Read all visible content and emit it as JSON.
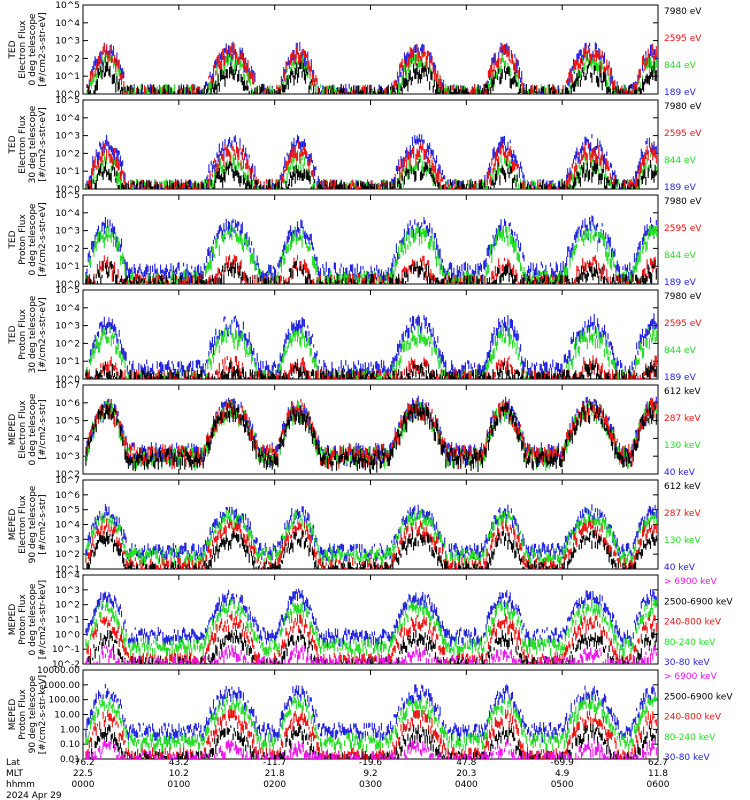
{
  "colors": {
    "black": "#000000",
    "blue": "#1f1fdf",
    "green": "#22dd22",
    "red": "#ee1111",
    "magenta": "#ee11ee"
  },
  "chart_data": [
    {
      "type": "line",
      "ylabel": [
        "TED",
        "Electron Flux",
        "0 deg telescope",
        "[#/cm2-s-str-eV]"
      ],
      "yscale": "log",
      "ylim": [
        1,
        100000
      ],
      "yticks": [
        "10^0",
        "10^1",
        "10^2",
        "10^3",
        "10^4",
        "10^5"
      ],
      "legend": [
        {
          "label": "7980 eV",
          "color": "black"
        },
        {
          "label": "2595 eV",
          "color": "red"
        },
        {
          "label": "844 eV",
          "color": "green"
        },
        {
          "label": "189 eV",
          "color": "blue"
        }
      ],
      "peaks": {
        "blue": 400,
        "red": 300,
        "green": 100,
        "black": 30
      }
    },
    {
      "type": "line",
      "ylabel": [
        "TED",
        "Electron Flux",
        "30 deg telescope",
        "[#/cm2-s-str-eV]"
      ],
      "yscale": "log",
      "ylim": [
        1,
        100000
      ],
      "yticks": [
        "10^0",
        "10^1",
        "10^2",
        "10^3",
        "10^4",
        "10^5"
      ],
      "legend": [
        {
          "label": "7980 eV",
          "color": "black"
        },
        {
          "label": "2595 eV",
          "color": "red"
        },
        {
          "label": "844 eV",
          "color": "green"
        },
        {
          "label": "189 eV",
          "color": "blue"
        }
      ],
      "peaks": {
        "blue": 500,
        "red": 200,
        "green": 50,
        "black": 20
      }
    },
    {
      "type": "line",
      "ylabel": [
        "TED",
        "Proton Flux",
        "0 deg telescope",
        "[#/cm2-s-str-eV]"
      ],
      "yscale": "log",
      "ylim": [
        1,
        100000
      ],
      "yticks": [
        "10^0",
        "10^1",
        "10^2",
        "10^3",
        "10^4",
        "10^5"
      ],
      "legend": [
        {
          "label": "7980 eV",
          "color": "black"
        },
        {
          "label": "2595 eV",
          "color": "red"
        },
        {
          "label": "844 eV",
          "color": "green"
        },
        {
          "label": "189 eV",
          "color": "blue"
        }
      ],
      "peaks": {
        "blue": 3000,
        "green": 1000,
        "red": 20,
        "black": 10
      }
    },
    {
      "type": "line",
      "ylabel": [
        "TED",
        "Proton Flux",
        "30 deg telescope",
        "[#/cm2-s-str-eV]"
      ],
      "yscale": "log",
      "ylim": [
        1,
        100000
      ],
      "yticks": [
        "10^0",
        "10^1",
        "10^2",
        "10^3",
        "10^4",
        "10^5"
      ],
      "legend": [
        {
          "label": "7980 eV",
          "color": "black"
        },
        {
          "label": "2595 eV",
          "color": "red"
        },
        {
          "label": "844 eV",
          "color": "green"
        },
        {
          "label": "189 eV",
          "color": "blue"
        }
      ],
      "peaks": {
        "blue": 2000,
        "green": 500,
        "red": 10,
        "black": 5
      }
    },
    {
      "type": "line",
      "ylabel": [
        "MEPED",
        "Electron Flux",
        "0 deg telescope",
        "[#/cm2-s-str]"
      ],
      "yscale": "log",
      "ylim": [
        100,
        10000000
      ],
      "yticks": [
        "10^2",
        "10^3",
        "10^4",
        "10^5",
        "10^6",
        "10^7"
      ],
      "legend": [
        {
          "label": "612 keV",
          "color": "black"
        },
        {
          "label": "287 keV",
          "color": "red"
        },
        {
          "label": "130 keV",
          "color": "green"
        },
        {
          "label": "40 keV",
          "color": "blue"
        }
      ],
      "peaks": {
        "blue": 1000000,
        "red": 800000,
        "green": 600000,
        "black": 500000
      }
    },
    {
      "type": "line",
      "ylabel": [
        "MEPED",
        "Electron Flux",
        "90 deg telescope",
        "[#/cm2-s-str]"
      ],
      "yscale": "log",
      "ylim": [
        10,
        10000000
      ],
      "yticks": [
        "10^1",
        "10^2",
        "10^3",
        "10^4",
        "10^5",
        "10^6",
        "10^7"
      ],
      "legend": [
        {
          "label": "612 keV",
          "color": "black"
        },
        {
          "label": "287 keV",
          "color": "red"
        },
        {
          "label": "130 keV",
          "color": "green"
        },
        {
          "label": "40 keV",
          "color": "blue"
        }
      ],
      "peaks": {
        "blue": 100000,
        "green": 50000,
        "red": 10000,
        "black": 2000
      }
    },
    {
      "type": "line",
      "ylabel": [
        "MEPED",
        "Proton Flux",
        "0 deg telescope",
        "[#/cm2-s-str-keV]"
      ],
      "yscale": "log",
      "ylim": [
        0.01,
        10000
      ],
      "yticks": [
        "10^-2",
        "10^-1",
        "10^0",
        "10^1",
        "10^2",
        "10^3",
        "10^4"
      ],
      "legend": [
        {
          "label": "> 6900 keV",
          "color": "magenta"
        },
        {
          "label": "2500-6900 keV",
          "color": "black"
        },
        {
          "label": "240-800 keV",
          "color": "red"
        },
        {
          "label": "80-240 keV",
          "color": "green"
        },
        {
          "label": "30-80 keV",
          "color": "blue"
        }
      ],
      "peaks": {
        "blue": 500,
        "green": 100,
        "red": 10,
        "black": 1,
        "magenta": 0.1
      }
    },
    {
      "type": "line",
      "ylabel": [
        "MEPED",
        "Proton Flux",
        "90 deg telescope",
        "[#/cm2-s-str-keV]"
      ],
      "yscale": "log",
      "ylim": [
        0.01,
        10000
      ],
      "yticks": [
        "0.01",
        "0.10",
        "1.00",
        "10.00",
        "100.00",
        "1000.00",
        "10000.00"
      ],
      "legend": [
        {
          "label": "> 6900 keV",
          "color": "magenta"
        },
        {
          "label": "2500-6900 keV",
          "color": "black"
        },
        {
          "label": "240-800 keV",
          "color": "red"
        },
        {
          "label": "80-240 keV",
          "color": "green"
        },
        {
          "label": "30-80 keV",
          "color": "blue"
        }
      ],
      "peaks": {
        "blue": 500,
        "green": 100,
        "red": 10,
        "black": 1,
        "magenta": 0.1
      }
    }
  ],
  "x_axis": {
    "rows": [
      {
        "label": "Lat",
        "values": [
          "-76.2",
          "43.2",
          "-11.7",
          "-19.6",
          "47.8",
          "-69.9",
          "62.7"
        ]
      },
      {
        "label": "MLT",
        "values": [
          "22.5",
          "10.2",
          "21.8",
          "9.2",
          "20.3",
          "4.9",
          "11.8"
        ]
      },
      {
        "label": "hhmm",
        "values": [
          "0000",
          "0100",
          "0200",
          "0300",
          "0400",
          "0500",
          "0600"
        ]
      }
    ],
    "date": "2024 Apr 29",
    "xlim_hours": [
      0,
      6
    ]
  },
  "events_hours": [
    0.25,
    1.55,
    2.25,
    3.5,
    4.4,
    5.3,
    5.95
  ]
}
